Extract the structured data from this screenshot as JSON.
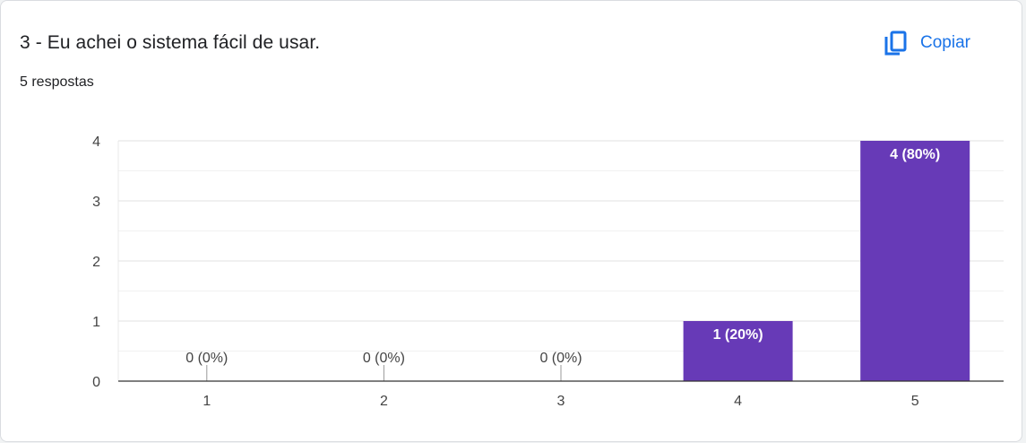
{
  "question": {
    "title": "3 - Eu achei o sistema fácil de usar.",
    "response_count": "5 respostas"
  },
  "toolbar": {
    "copy_label": "Copiar",
    "copy_icon": "copy-icon"
  },
  "colors": {
    "bar": "#673ab7",
    "accent": "#1a73e8"
  },
  "chart_data": {
    "type": "bar",
    "categories": [
      "1",
      "2",
      "3",
      "4",
      "5"
    ],
    "values": [
      0,
      0,
      0,
      1,
      4
    ],
    "data_labels": [
      "0 (0%)",
      "0 (0%)",
      "0 (0%)",
      "1 (20%)",
      "4 (80%)"
    ],
    "yticks": [
      0,
      1,
      2,
      3,
      4
    ],
    "ylim": [
      0,
      4
    ],
    "grid": true,
    "legend": "none"
  }
}
